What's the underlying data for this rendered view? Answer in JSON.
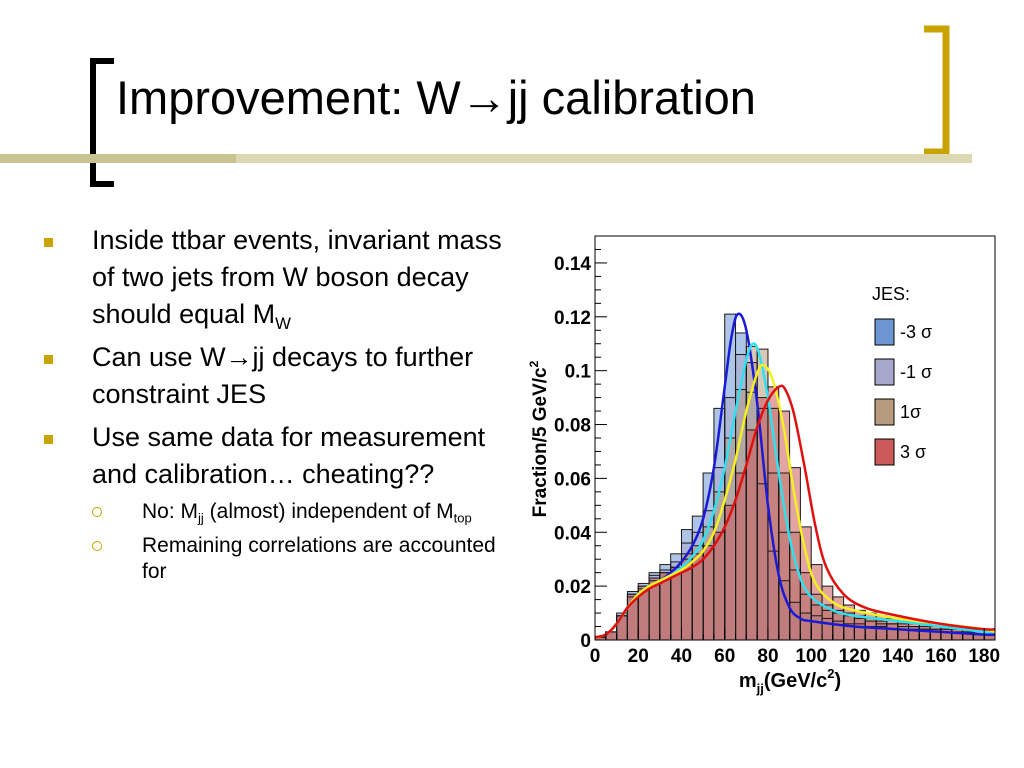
{
  "slide": {
    "title": "Improvement: W→jj calibration",
    "colors": {
      "accent": "#c9a300",
      "rule_dark": "#c8c38f",
      "rule_light": "#dcd8b2"
    }
  },
  "bullets": {
    "b1": {
      "text": "Inside ttbar events, invariant mass of two jets from W boson decay should equal M",
      "sub": "W"
    },
    "b2": {
      "text": "Can use W→jj decays to further constraint JES"
    },
    "b3": {
      "text": "Use same data for measurement and calibration… cheating??"
    },
    "s1": {
      "t1": "No: M",
      "sub1": "jj",
      "t2": " (almost) independent of M",
      "sub2": "top"
    },
    "s2": {
      "text": "Remaining correlations are accounted for"
    }
  },
  "chart_data": {
    "type": "area",
    "xlabel_main": "m",
    "xlabel_sub": "jj",
    "xlabel_rest": "(GeV/c",
    "xlabel_sup": "2",
    "xlabel_end": ")",
    "ylabel_main": "Fraction/5 GeV/c",
    "ylabel_sup": "2",
    "xlim": [
      0,
      185
    ],
    "ylim": [
      0,
      0.15
    ],
    "xticks": [
      0,
      20,
      40,
      60,
      80,
      100,
      120,
      140,
      160,
      180
    ],
    "yticks": [
      0,
      0.02,
      0.04,
      0.06,
      0.08,
      0.1,
      0.12,
      0.14
    ],
    "ytick_labels": [
      "0",
      "0.02",
      "0.04",
      "0.06",
      "0.08",
      "0.1",
      "0.12",
      "0.14"
    ],
    "legend_title": "JES:",
    "legend_position": "top-right",
    "bin_edges": [
      0,
      5,
      10,
      15,
      20,
      25,
      30,
      35,
      40,
      45,
      50,
      55,
      60,
      65,
      70,
      75,
      80,
      85,
      90,
      95,
      100,
      105,
      110,
      115,
      120,
      125,
      130,
      135,
      140,
      145,
      150,
      155,
      160,
      165,
      170,
      175,
      180,
      185
    ],
    "series": [
      {
        "name": "-3 σ",
        "fill": "#6d95d4",
        "line": "#1a1ad6",
        "values": [
          0.001,
          0.003,
          0.01,
          0.018,
          0.021,
          0.025,
          0.028,
          0.032,
          0.041,
          0.046,
          0.062,
          0.086,
          0.121,
          0.114,
          0.092,
          0.058,
          0.033,
          0.022,
          0.014,
          0.01,
          0.009,
          0.008,
          0.007,
          0.006,
          0.006,
          0.005,
          0.005,
          0.004,
          0.004,
          0.004,
          0.004,
          0.003,
          0.003,
          0.003,
          0.003,
          0.002,
          0.002
        ]
      },
      {
        "name": "-1 σ",
        "fill": "#a7a7cc",
        "line": "#2fe0f0",
        "values": [
          0.001,
          0.003,
          0.009,
          0.017,
          0.02,
          0.024,
          0.026,
          0.029,
          0.036,
          0.04,
          0.048,
          0.064,
          0.09,
          0.106,
          0.103,
          0.086,
          0.062,
          0.04,
          0.026,
          0.017,
          0.013,
          0.011,
          0.01,
          0.009,
          0.008,
          0.007,
          0.006,
          0.006,
          0.005,
          0.005,
          0.004,
          0.004,
          0.004,
          0.003,
          0.003,
          0.003,
          0.002
        ]
      },
      {
        "name": "1σ",
        "fill": "#b89a7e",
        "line": "#f5f020",
        "values": [
          0.001,
          0.003,
          0.009,
          0.016,
          0.019,
          0.022,
          0.025,
          0.027,
          0.032,
          0.035,
          0.042,
          0.055,
          0.075,
          0.093,
          0.109,
          0.108,
          0.086,
          0.062,
          0.04,
          0.025,
          0.017,
          0.013,
          0.011,
          0.01,
          0.009,
          0.008,
          0.007,
          0.006,
          0.006,
          0.005,
          0.005,
          0.004,
          0.004,
          0.004,
          0.003,
          0.003,
          0.003
        ]
      },
      {
        "name": "3 σ",
        "fill": "#cc5a5a",
        "line": "#e01010",
        "values": [
          0.001,
          0.003,
          0.009,
          0.017,
          0.02,
          0.023,
          0.025,
          0.027,
          0.03,
          0.032,
          0.035,
          0.04,
          0.05,
          0.062,
          0.078,
          0.09,
          0.094,
          0.085,
          0.064,
          0.042,
          0.028,
          0.02,
          0.016,
          0.013,
          0.011,
          0.01,
          0.009,
          0.008,
          0.007,
          0.006,
          0.006,
          0.005,
          0.005,
          0.004,
          0.004,
          0.004,
          0.003
        ]
      }
    ],
    "fit_curves": [
      {
        "series": "-3 σ",
        "color": "#1a1ad6",
        "points": [
          [
            0,
            0.001
          ],
          [
            5,
            0.002
          ],
          [
            10,
            0.006
          ],
          [
            15,
            0.012
          ],
          [
            20,
            0.017
          ],
          [
            25,
            0.02
          ],
          [
            30,
            0.022
          ],
          [
            35,
            0.025
          ],
          [
            40,
            0.029
          ],
          [
            45,
            0.035
          ],
          [
            50,
            0.045
          ],
          [
            55,
            0.064
          ],
          [
            60,
            0.094
          ],
          [
            63,
            0.112
          ],
          [
            66,
            0.121
          ],
          [
            70,
            0.115
          ],
          [
            75,
            0.088
          ],
          [
            80,
            0.05
          ],
          [
            85,
            0.024
          ],
          [
            90,
            0.012
          ],
          [
            95,
            0.008
          ],
          [
            100,
            0.007
          ],
          [
            120,
            0.005
          ],
          [
            140,
            0.004
          ],
          [
            160,
            0.003
          ],
          [
            180,
            0.002
          ],
          [
            185,
            0.002
          ]
        ]
      },
      {
        "series": "-1 σ",
        "color": "#2fe0f0",
        "points": [
          [
            0,
            0.001
          ],
          [
            5,
            0.002
          ],
          [
            10,
            0.006
          ],
          [
            15,
            0.012
          ],
          [
            20,
            0.017
          ],
          [
            25,
            0.02
          ],
          [
            30,
            0.022
          ],
          [
            35,
            0.024
          ],
          [
            40,
            0.027
          ],
          [
            45,
            0.031
          ],
          [
            50,
            0.037
          ],
          [
            55,
            0.048
          ],
          [
            60,
            0.064
          ],
          [
            65,
            0.085
          ],
          [
            70,
            0.104
          ],
          [
            73,
            0.11
          ],
          [
            76,
            0.106
          ],
          [
            80,
            0.09
          ],
          [
            85,
            0.062
          ],
          [
            90,
            0.038
          ],
          [
            95,
            0.023
          ],
          [
            100,
            0.016
          ],
          [
            110,
            0.011
          ],
          [
            120,
            0.009
          ],
          [
            140,
            0.007
          ],
          [
            160,
            0.005
          ],
          [
            180,
            0.003
          ],
          [
            185,
            0.003
          ]
        ]
      },
      {
        "series": "1σ",
        "color": "#f5f020",
        "points": [
          [
            0,
            0.001
          ],
          [
            5,
            0.002
          ],
          [
            10,
            0.006
          ],
          [
            15,
            0.012
          ],
          [
            20,
            0.017
          ],
          [
            25,
            0.02
          ],
          [
            30,
            0.022
          ],
          [
            35,
            0.024
          ],
          [
            40,
            0.026
          ],
          [
            45,
            0.029
          ],
          [
            50,
            0.033
          ],
          [
            55,
            0.04
          ],
          [
            60,
            0.052
          ],
          [
            65,
            0.067
          ],
          [
            70,
            0.085
          ],
          [
            75,
            0.099
          ],
          [
            78,
            0.102
          ],
          [
            82,
            0.097
          ],
          [
            87,
            0.08
          ],
          [
            92,
            0.055
          ],
          [
            97,
            0.034
          ],
          [
            102,
            0.021
          ],
          [
            110,
            0.014
          ],
          [
            120,
            0.011
          ],
          [
            140,
            0.008
          ],
          [
            160,
            0.006
          ],
          [
            180,
            0.004
          ],
          [
            185,
            0.003
          ]
        ]
      },
      {
        "series": "3 σ",
        "color": "#e01010",
        "points": [
          [
            0,
            0.001
          ],
          [
            5,
            0.002
          ],
          [
            10,
            0.006
          ],
          [
            15,
            0.012
          ],
          [
            20,
            0.016
          ],
          [
            25,
            0.019
          ],
          [
            30,
            0.021
          ],
          [
            35,
            0.023
          ],
          [
            40,
            0.025
          ],
          [
            45,
            0.027
          ],
          [
            50,
            0.03
          ],
          [
            55,
            0.035
          ],
          [
            60,
            0.042
          ],
          [
            65,
            0.052
          ],
          [
            70,
            0.065
          ],
          [
            75,
            0.079
          ],
          [
            80,
            0.089
          ],
          [
            85,
            0.094
          ],
          [
            88,
            0.093
          ],
          [
            92,
            0.084
          ],
          [
            97,
            0.064
          ],
          [
            102,
            0.042
          ],
          [
            107,
            0.027
          ],
          [
            115,
            0.017
          ],
          [
            125,
            0.012
          ],
          [
            140,
            0.009
          ],
          [
            160,
            0.006
          ],
          [
            180,
            0.004
          ],
          [
            185,
            0.004
          ]
        ]
      }
    ]
  }
}
